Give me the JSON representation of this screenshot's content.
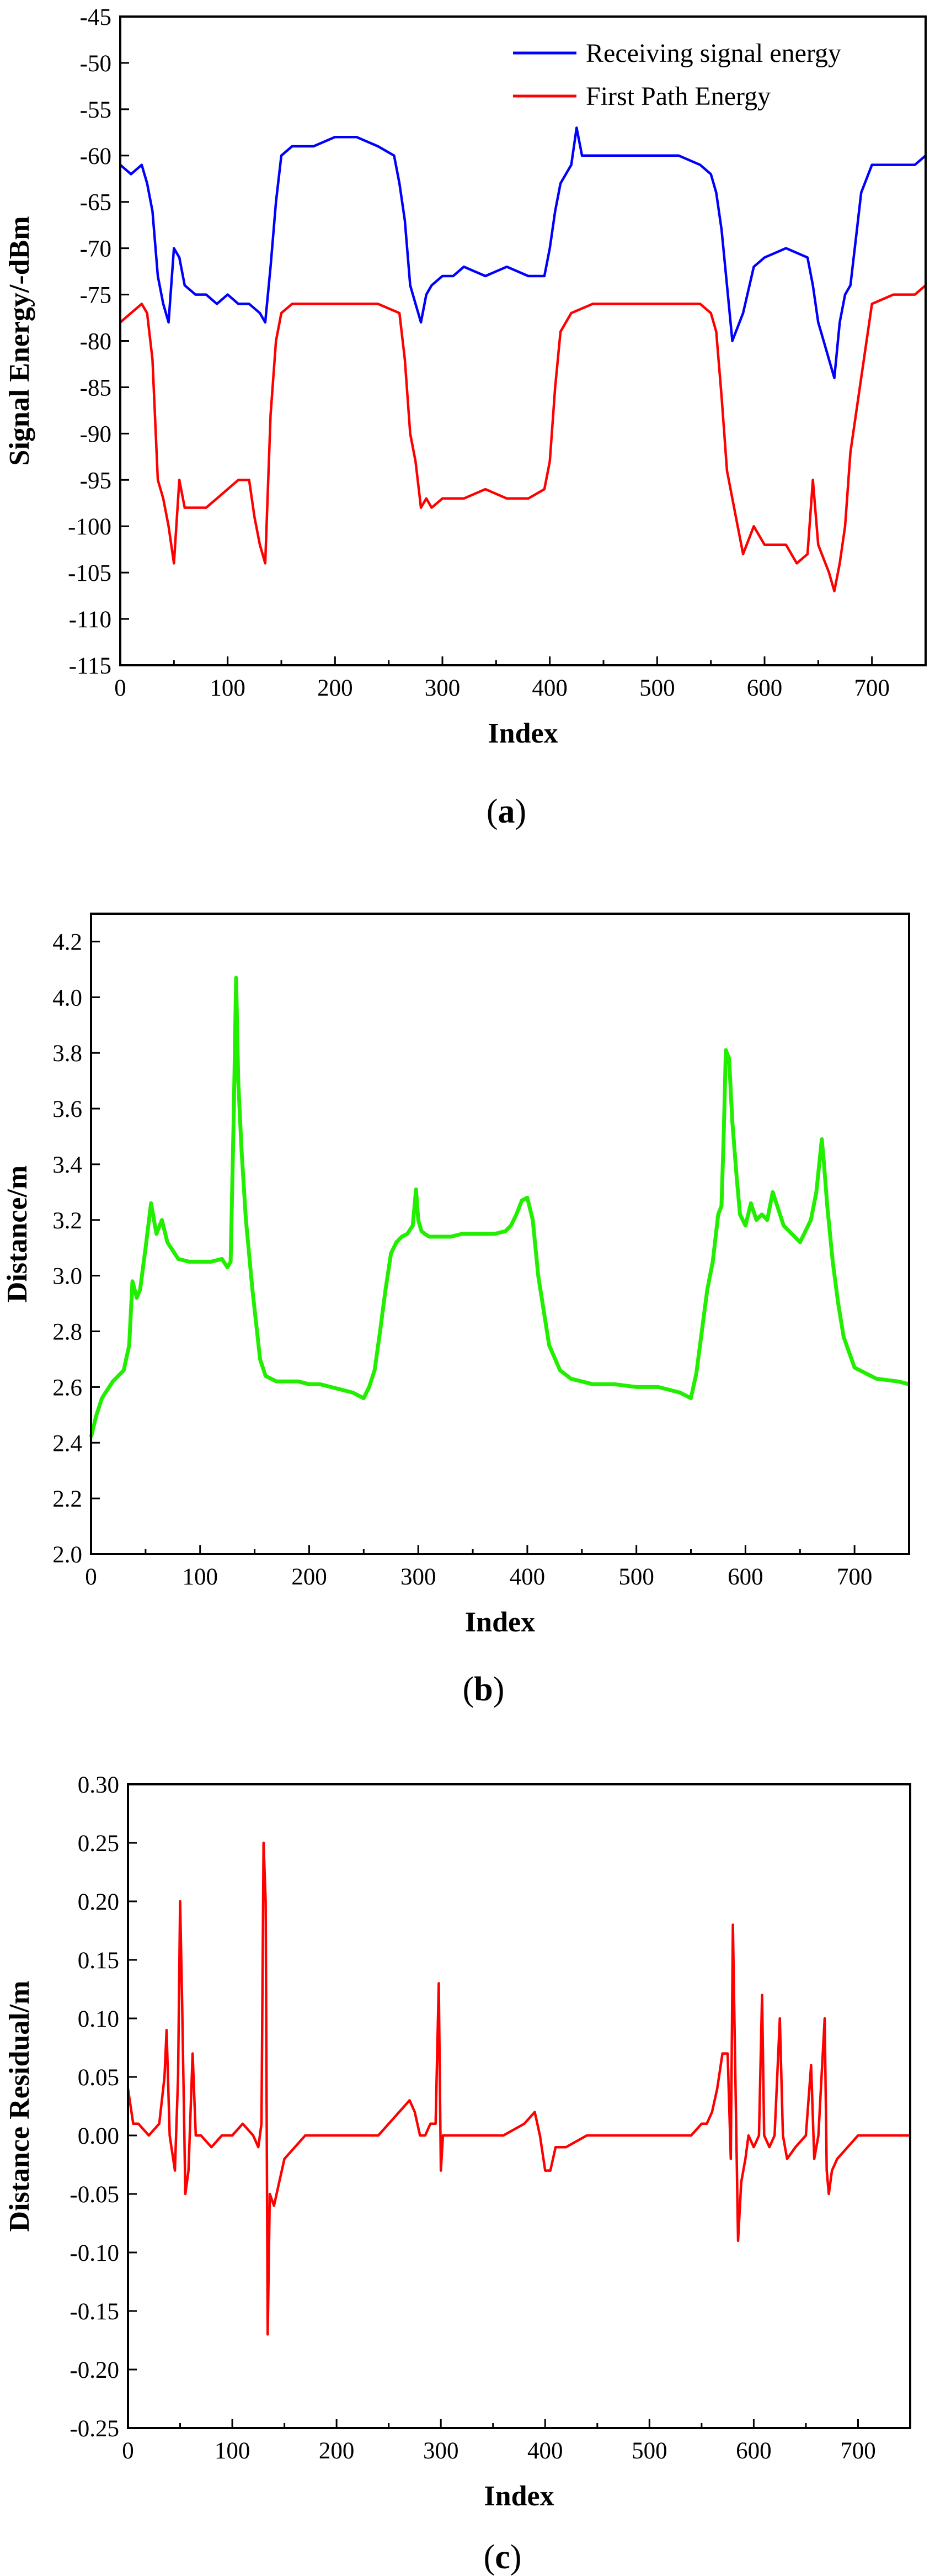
{
  "chart_data": [
    {
      "type": "line",
      "panel_label": "(a)",
      "panel_letter": "a",
      "xlabel": "Index",
      "ylabel": "Signal Energy/-dBm",
      "xlim": [
        0,
        750
      ],
      "ylim": [
        -115,
        -45
      ],
      "xticks": [
        0,
        100,
        200,
        300,
        400,
        500,
        600,
        700
      ],
      "yticks": [
        -115,
        -110,
        -105,
        -100,
        -95,
        -90,
        -85,
        -80,
        -75,
        -70,
        -65,
        -60,
        -55,
        -50,
        -45
      ],
      "legend_position": "top-right",
      "grid": false,
      "series": [
        {
          "name": "Receiving signal energy",
          "color": "#0000ff",
          "x": [
            0,
            10,
            20,
            25,
            30,
            35,
            40,
            45,
            50,
            55,
            60,
            70,
            80,
            90,
            100,
            110,
            120,
            130,
            135,
            140,
            145,
            150,
            160,
            180,
            200,
            220,
            240,
            255,
            260,
            265,
            270,
            275,
            280,
            285,
            290,
            300,
            310,
            320,
            340,
            360,
            380,
            395,
            400,
            405,
            410,
            420,
            425,
            430,
            440,
            460,
            480,
            500,
            520,
            540,
            550,
            555,
            560,
            565,
            570,
            580,
            590,
            600,
            620,
            640,
            645,
            650,
            655,
            660,
            665,
            670,
            675,
            680,
            685,
            690,
            700,
            720,
            740,
            750
          ],
          "y": [
            -61,
            -62,
            -61,
            -63,
            -66,
            -73,
            -76,
            -78,
            -70,
            -71,
            -74,
            -75,
            -75,
            -76,
            -75,
            -76,
            -76,
            -77,
            -78,
            -72,
            -65,
            -60,
            -59,
            -59,
            -58,
            -58,
            -59,
            -60,
            -63,
            -67,
            -74,
            -76,
            -78,
            -75,
            -74,
            -73,
            -73,
            -72,
            -73,
            -72,
            -73,
            -73,
            -70,
            -66,
            -63,
            -61,
            -57,
            -60,
            -60,
            -60,
            -60,
            -60,
            -60,
            -61,
            -62,
            -64,
            -68,
            -74,
            -80,
            -77,
            -72,
            -71,
            -70,
            -71,
            -74,
            -78,
            -80,
            -82,
            -84,
            -78,
            -75,
            -74,
            -69,
            -64,
            -61,
            -61,
            -61,
            -60
          ]
        },
        {
          "name": "First Path Energy",
          "color": "#ff0000",
          "x": [
            0,
            10,
            20,
            25,
            30,
            35,
            40,
            45,
            50,
            55,
            60,
            70,
            80,
            90,
            100,
            110,
            120,
            125,
            130,
            135,
            140,
            145,
            150,
            160,
            180,
            200,
            220,
            240,
            260,
            265,
            270,
            275,
            280,
            285,
            290,
            300,
            320,
            340,
            360,
            380,
            395,
            400,
            405,
            410,
            420,
            440,
            460,
            480,
            500,
            520,
            540,
            550,
            555,
            560,
            565,
            570,
            575,
            580,
            590,
            600,
            620,
            630,
            640,
            645,
            650,
            660,
            665,
            670,
            675,
            680,
            690,
            700,
            720,
            740,
            750
          ],
          "y": [
            -78,
            -77,
            -76,
            -77,
            -82,
            -95,
            -97,
            -100,
            -104,
            -95,
            -98,
            -98,
            -98,
            -97,
            -96,
            -95,
            -95,
            -99,
            -102,
            -104,
            -88,
            -80,
            -77,
            -76,
            -76,
            -76,
            -76,
            -76,
            -77,
            -82,
            -90,
            -93,
            -98,
            -97,
            -98,
            -97,
            -97,
            -96,
            -97,
            -97,
            -96,
            -93,
            -85,
            -79,
            -77,
            -76,
            -76,
            -76,
            -76,
            -76,
            -76,
            -77,
            -79,
            -86,
            -94,
            -97,
            -100,
            -103,
            -100,
            -102,
            -102,
            -104,
            -103,
            -95,
            -102,
            -105,
            -107,
            -104,
            -100,
            -92,
            -84,
            -76,
            -75,
            -75,
            -74
          ]
        }
      ]
    },
    {
      "type": "line",
      "panel_label": "(b)",
      "panel_letter": "b",
      "xlabel": "Index",
      "ylabel": "Distance/m",
      "xlim": [
        0,
        750
      ],
      "ylim": [
        2.0,
        4.3
      ],
      "xticks": [
        0,
        100,
        200,
        300,
        400,
        500,
        600,
        700
      ],
      "yticks": [
        2.0,
        2.2,
        2.4,
        2.6,
        2.8,
        3.0,
        3.2,
        3.4,
        3.6,
        3.8,
        4.0,
        4.2
      ],
      "grid": false,
      "series": [
        {
          "color": "#22ee00",
          "x": [
            0,
            5,
            10,
            20,
            30,
            35,
            38,
            42,
            45,
            50,
            55,
            60,
            65,
            70,
            80,
            90,
            100,
            110,
            120,
            125,
            128,
            131,
            133,
            135,
            138,
            142,
            148,
            155,
            160,
            170,
            180,
            190,
            200,
            210,
            220,
            230,
            240,
            250,
            255,
            260,
            265,
            270,
            275,
            280,
            285,
            290,
            295,
            298,
            300,
            303,
            306,
            310,
            320,
            330,
            340,
            350,
            360,
            370,
            380,
            385,
            390,
            395,
            400,
            405,
            410,
            420,
            430,
            440,
            460,
            480,
            500,
            520,
            530,
            540,
            545,
            550,
            555,
            560,
            565,
            570,
            575,
            578,
            580,
            582,
            585,
            588,
            592,
            595,
            600,
            605,
            610,
            615,
            620,
            625,
            630,
            635,
            640,
            650,
            660,
            665,
            670,
            672,
            675,
            680,
            685,
            690,
            700,
            710,
            720,
            740,
            750
          ],
          "y": [
            2.42,
            2.5,
            2.56,
            2.62,
            2.66,
            2.75,
            2.98,
            2.92,
            2.95,
            3.1,
            3.26,
            3.15,
            3.2,
            3.12,
            3.06,
            3.05,
            3.05,
            3.05,
            3.06,
            3.03,
            3.05,
            3.6,
            4.07,
            3.7,
            3.45,
            3.2,
            2.95,
            2.7,
            2.64,
            2.62,
            2.62,
            2.62,
            2.61,
            2.61,
            2.6,
            2.59,
            2.58,
            2.56,
            2.6,
            2.66,
            2.8,
            2.95,
            3.08,
            3.12,
            3.14,
            3.15,
            3.18,
            3.31,
            3.2,
            3.16,
            3.15,
            3.14,
            3.14,
            3.14,
            3.15,
            3.15,
            3.15,
            3.15,
            3.16,
            3.18,
            3.22,
            3.27,
            3.28,
            3.2,
            3.0,
            2.75,
            2.66,
            2.63,
            2.61,
            2.61,
            2.6,
            2.6,
            2.59,
            2.58,
            2.57,
            2.56,
            2.65,
            2.8,
            2.95,
            3.05,
            3.22,
            3.25,
            3.5,
            3.81,
            3.78,
            3.55,
            3.35,
            3.22,
            3.18,
            3.26,
            3.2,
            3.22,
            3.2,
            3.3,
            3.24,
            3.18,
            3.16,
            3.12,
            3.2,
            3.3,
            3.49,
            3.4,
            3.25,
            3.05,
            2.9,
            2.78,
            2.67,
            2.65,
            2.63,
            2.62,
            2.61
          ]
        }
      ]
    },
    {
      "type": "line",
      "panel_label": "(c)",
      "panel_letter": "c",
      "xlabel": "Index",
      "ylabel": "Distance Residual/m",
      "xlim": [
        0,
        750
      ],
      "ylim": [
        -0.25,
        0.3
      ],
      "xticks": [
        0,
        100,
        200,
        300,
        400,
        500,
        600,
        700
      ],
      "yticks": [
        -0.25,
        -0.2,
        -0.15,
        -0.1,
        -0.05,
        0.0,
        0.05,
        0.1,
        0.15,
        0.2,
        0.25,
        0.3
      ],
      "grid": false,
      "series": [
        {
          "color": "#ff0000",
          "x": [
            0,
            5,
            10,
            20,
            30,
            35,
            37,
            40,
            45,
            48,
            50,
            52,
            55,
            58,
            62,
            65,
            70,
            80,
            90,
            100,
            110,
            120,
            125,
            128,
            130,
            132,
            134,
            136,
            140,
            145,
            150,
            160,
            170,
            180,
            190,
            200,
            210,
            220,
            240,
            260,
            270,
            275,
            280,
            285,
            290,
            295,
            298,
            300,
            302,
            305,
            310,
            320,
            340,
            360,
            380,
            390,
            395,
            400,
            405,
            410,
            420,
            440,
            460,
            480,
            500,
            520,
            540,
            550,
            555,
            560,
            565,
            570,
            575,
            578,
            580,
            582,
            585,
            588,
            592,
            595,
            600,
            605,
            608,
            610,
            615,
            620,
            625,
            628,
            632,
            640,
            650,
            655,
            658,
            662,
            665,
            668,
            670,
            672,
            675,
            680,
            690,
            700,
            720,
            740,
            750
          ],
          "y": [
            0.04,
            0.01,
            0.01,
            0.0,
            0.01,
            0.05,
            0.09,
            0.0,
            -0.03,
            0.05,
            0.2,
            0.11,
            -0.05,
            -0.03,
            0.07,
            0.0,
            0.0,
            -0.01,
            0.0,
            0.0,
            0.01,
            0.0,
            -0.01,
            0.01,
            0.25,
            0.2,
            -0.17,
            -0.05,
            -0.06,
            -0.04,
            -0.02,
            -0.01,
            0.0,
            0.0,
            0.0,
            0.0,
            0.0,
            0.0,
            0.0,
            0.02,
            0.03,
            0.02,
            0.0,
            0.0,
            0.01,
            0.01,
            0.13,
            -0.03,
            0.0,
            0.0,
            0.0,
            0.0,
            0.0,
            0.0,
            0.01,
            0.02,
            0.0,
            -0.03,
            -0.03,
            -0.01,
            -0.01,
            0.0,
            0.0,
            0.0,
            0.0,
            0.0,
            0.0,
            0.01,
            0.01,
            0.02,
            0.04,
            0.07,
            0.07,
            -0.02,
            0.18,
            0.07,
            -0.09,
            -0.04,
            -0.02,
            0.0,
            -0.01,
            0.0,
            0.12,
            0.0,
            -0.01,
            0.0,
            0.1,
            0.0,
            -0.02,
            -0.01,
            0.0,
            0.06,
            -0.02,
            0.0,
            0.05,
            0.1,
            -0.03,
            -0.05,
            -0.03,
            -0.02,
            -0.01,
            0.0,
            0.0,
            0.0,
            0.0
          ]
        }
      ]
    }
  ]
}
